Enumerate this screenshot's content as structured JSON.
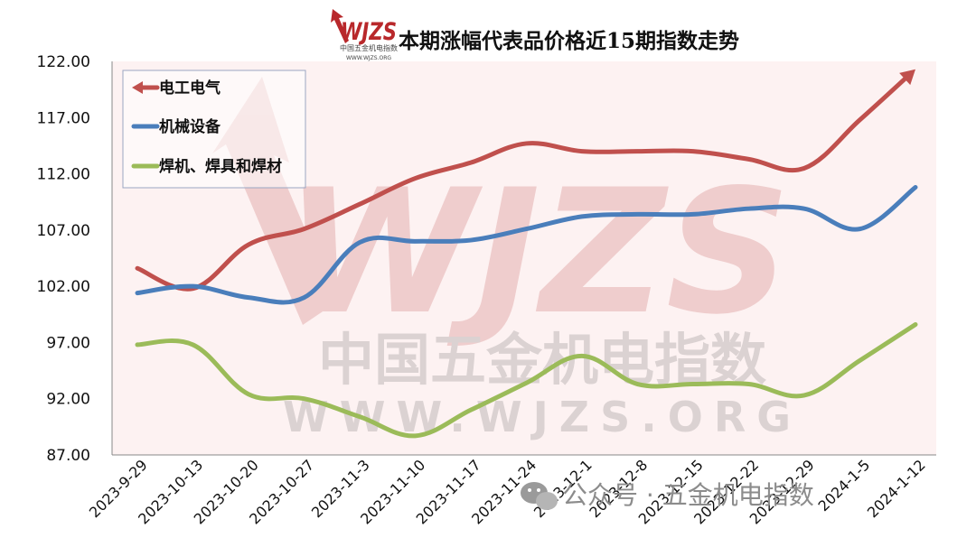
{
  "logo": {
    "brand": "WJZS",
    "cn_name": "中国五金机电指数",
    "url": "WWW.WJZS.ORG",
    "red": "#b8282b"
  },
  "watermark": {
    "brand": "WJZS",
    "cn_name": "中国五金机电指数",
    "url": "WWW.WJZS.ORG"
  },
  "footer": {
    "text": "公众号 · 五金机电指数"
  },
  "chart_data": {
    "type": "line",
    "title": "本期涨幅代表品价格近15期指数走势",
    "categories": [
      "2023-9-29",
      "2023-10-13",
      "2023-10-20",
      "2023-10-27",
      "2023-11-3",
      "2023-11-10",
      "2023-11-17",
      "2023-11-24",
      "2023-12-1",
      "2023-12-8",
      "2023-12-15",
      "2023-12-22",
      "2023-12-29",
      "2024-1-5",
      "2024-1-12"
    ],
    "ylim": [
      87,
      122
    ],
    "yticks": [
      "87.00",
      "92.00",
      "97.00",
      "102.00",
      "107.00",
      "112.00",
      "117.00",
      "122.00"
    ],
    "grid": false,
    "legend_position": "top-left",
    "series": [
      {
        "name": "电工电气",
        "color": "#c0504d",
        "values": [
          103.6,
          101.8,
          105.7,
          107.1,
          109.3,
          111.6,
          113.0,
          114.7,
          114.0,
          114.0,
          114.0,
          113.3,
          112.5,
          116.8,
          121.3
        ]
      },
      {
        "name": "机械设备",
        "color": "#4a7ebb",
        "values": [
          101.4,
          102.0,
          101.0,
          101.0,
          105.9,
          106.0,
          106.1,
          107.1,
          108.2,
          108.4,
          108.4,
          108.9,
          108.9,
          107.1,
          110.8
        ]
      },
      {
        "name": "焊机、焊具和焊材",
        "color": "#9bbb59",
        "values": [
          96.8,
          96.8,
          92.4,
          92.0,
          90.4,
          88.7,
          91.0,
          93.4,
          95.8,
          93.3,
          93.3,
          93.3,
          92.3,
          95.4,
          98.6
        ]
      }
    ]
  }
}
